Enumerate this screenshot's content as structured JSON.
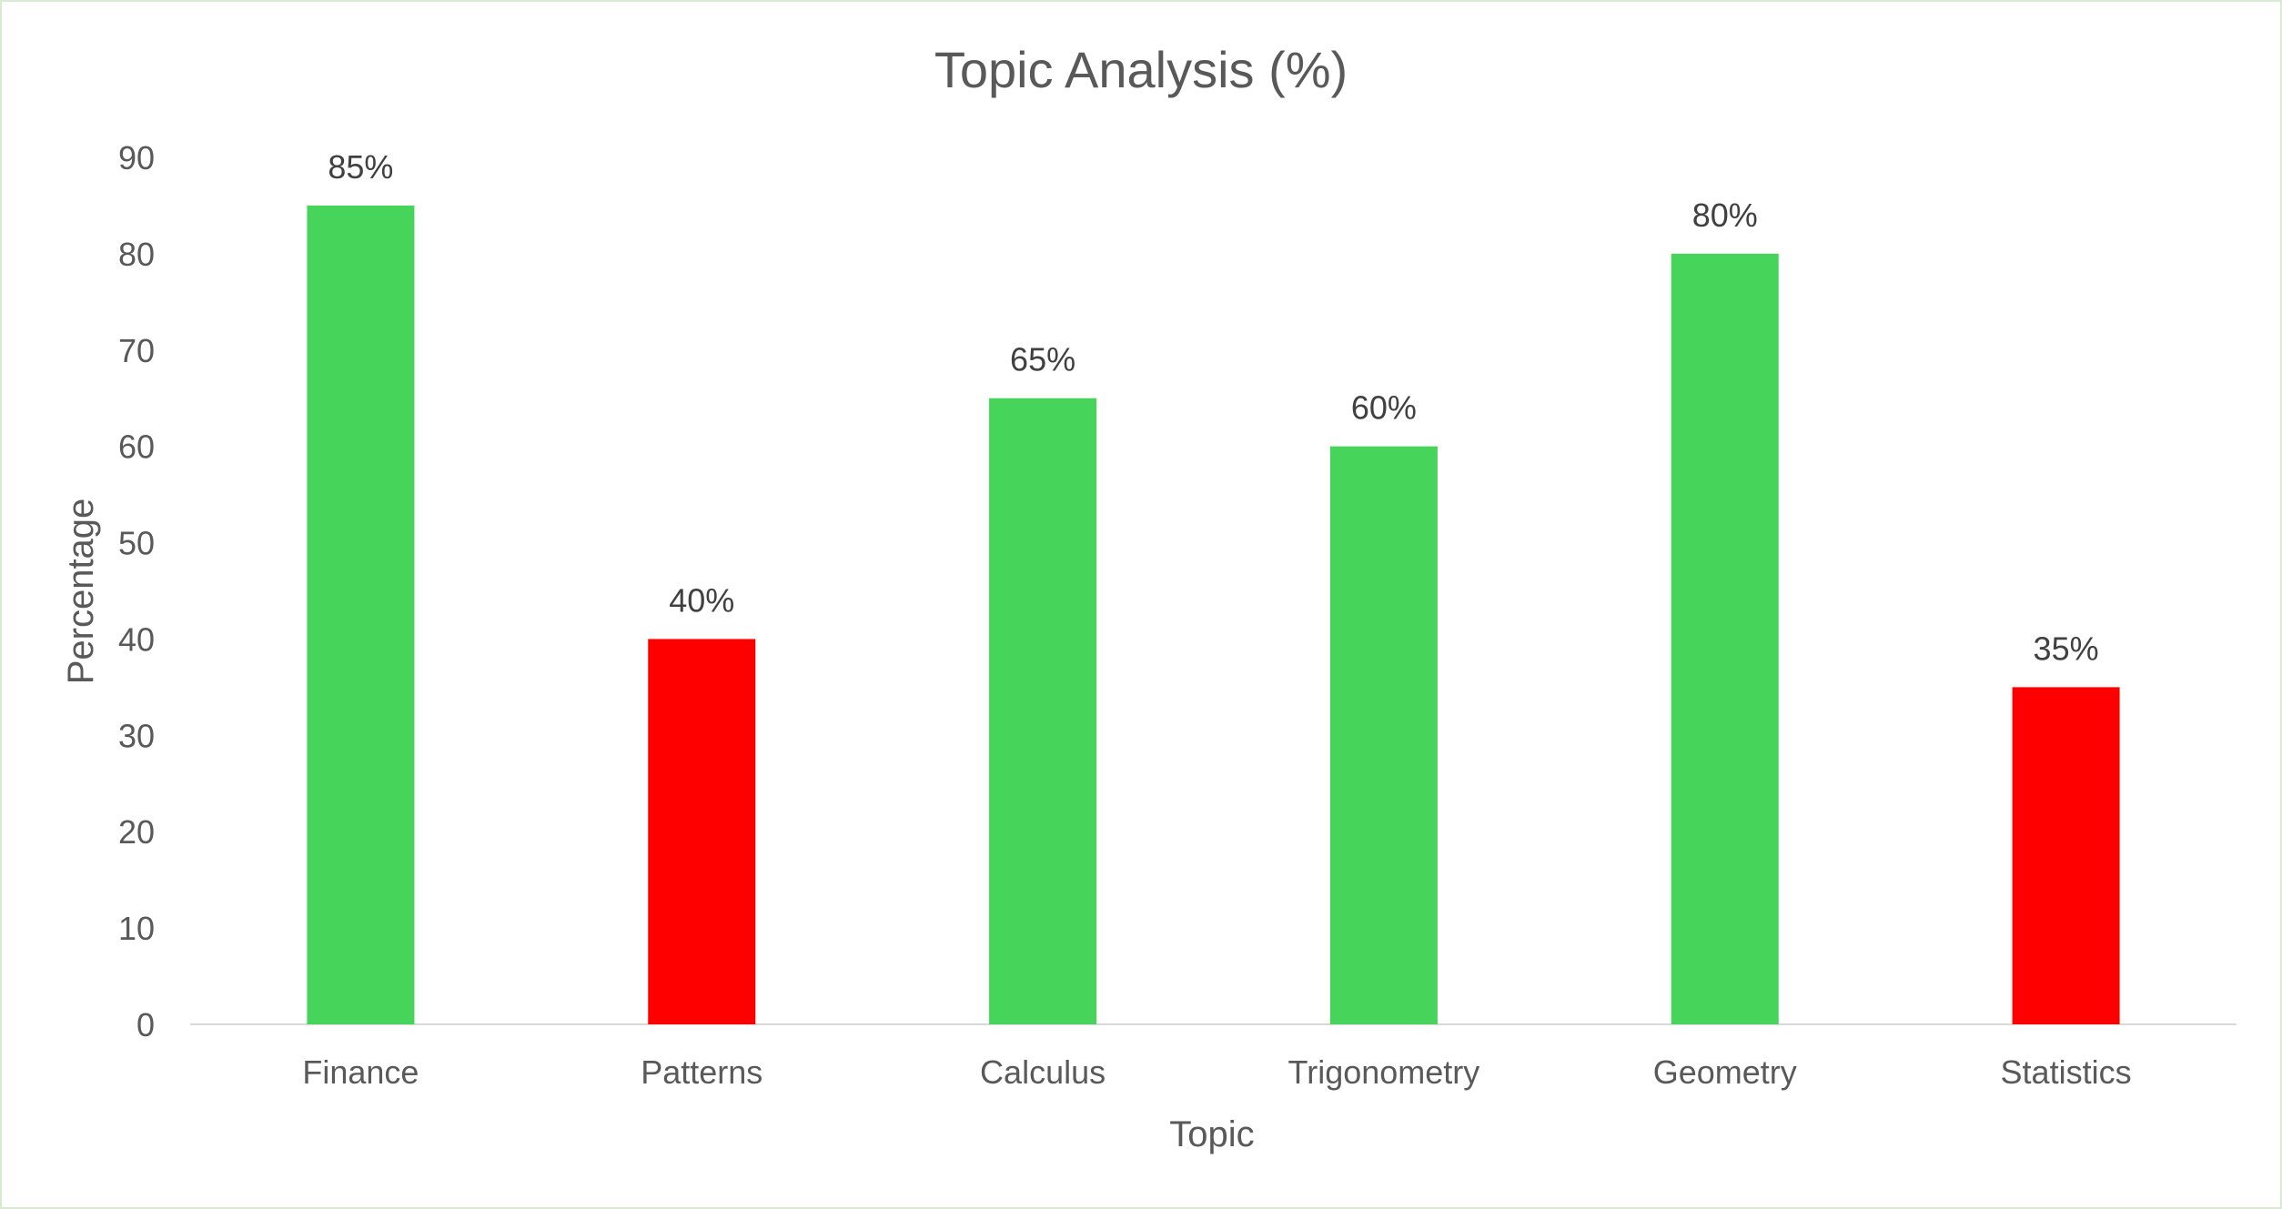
{
  "chart_data": {
    "type": "bar",
    "title": "Topic Analysis (%)",
    "xlabel": "Topic",
    "ylabel": "Percentage",
    "categories": [
      "Finance",
      "Patterns",
      "Calculus",
      "Trigonometry",
      "Geometry",
      "Statistics"
    ],
    "values": [
      85,
      40,
      65,
      60,
      80,
      35
    ],
    "data_labels": [
      "85%",
      "40%",
      "65%",
      "60%",
      "80%",
      "35%"
    ],
    "bar_colors": [
      "#47d45a",
      "#ff0000",
      "#47d45a",
      "#47d45a",
      "#47d45a",
      "#ff0000"
    ],
    "ylim": [
      0,
      90
    ],
    "yticks": [
      0,
      10,
      20,
      30,
      40,
      50,
      60,
      70,
      80,
      90
    ],
    "grid": false,
    "legend": "none"
  }
}
